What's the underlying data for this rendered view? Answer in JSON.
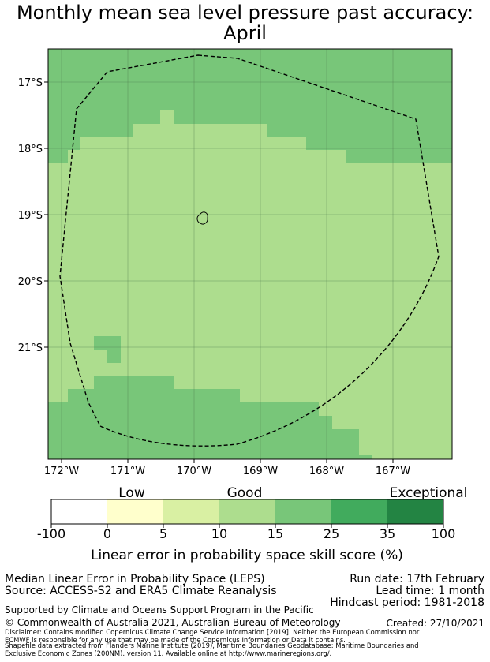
{
  "title": {
    "line1": "Monthly mean sea level pressure past accuracy:",
    "line2": "April"
  },
  "map": {
    "lat_labels": [
      "17°S",
      "18°S",
      "19°S",
      "20°S",
      "21°S"
    ],
    "lon_labels": [
      "172°W",
      "171°W",
      "170°W",
      "169°W",
      "168°W",
      "167°W"
    ],
    "lon_range": [
      -172.4,
      -166.3
    ],
    "lat_range": [
      -22.7,
      -16.5
    ],
    "category_colors": {
      "5-10": "#d9f0a3",
      "10-15": "#addd8e",
      "15-25": "#78c679",
      "25-35": "#41ab5d"
    },
    "island_name_icon": "island-outline",
    "eez_boundary_style": "dashed"
  },
  "colorbar": {
    "category_labels": [
      "Low",
      "Good",
      "Exceptional"
    ],
    "tick_labels": [
      "-100",
      "0",
      "5",
      "10",
      "15",
      "25",
      "35",
      "100"
    ],
    "colors": [
      "#ffffff",
      "#ffffcc",
      "#d9f0a3",
      "#addd8e",
      "#78c679",
      "#41ab5d",
      "#238443"
    ],
    "axis_label": "Linear error in probability space skill score (%)"
  },
  "footer": {
    "metric": "Median Linear Error in Probability Space (LEPS)",
    "source": "Source: ACCESS-S2 and ERA5 Climate Reanalysis",
    "run_date": "Run date: 17th February",
    "lead_time": "Lead time: 1 month",
    "hindcast": "Hindcast period: 1981-2018",
    "support": "Supported by Climate and Oceans Support Program in the Pacific",
    "copyright": "© Commonwealth of Australia 2021, Australian Bureau of Meteorology",
    "created": "Created: 27/10/2021",
    "disclaimer1": "Disclaimer: Contains modified Copernicus Climate Change Service Information [2019]. Neither the European Commission nor",
    "disclaimer2": "ECMWF is responsible for any use that may be made of the Copernicus Information or Data it contains.",
    "shapefile1": "Shapefile data extracted from Flanders Marine Institute (2019), Maritime Boundaries Geodatabase: Maritime Boundaries and",
    "shapefile2": "Exclusive Economic Zones (200NM), version 11. Available online at http://www.marineregions.org/."
  }
}
